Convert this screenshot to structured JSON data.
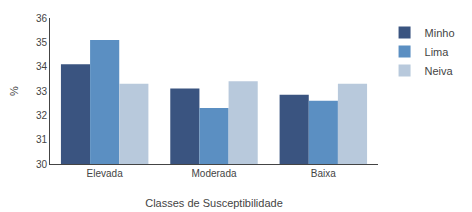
{
  "chart_data": {
    "type": "bar",
    "categories": [
      "Elevada",
      "Moderada",
      "Baixa"
    ],
    "series": [
      {
        "name": "Minho",
        "color": "#3a5480",
        "values": [
          34.1,
          33.1,
          32.85
        ]
      },
      {
        "name": "Lima",
        "color": "#5b8fc2",
        "values": [
          35.1,
          32.3,
          32.6
        ]
      },
      {
        "name": "Neiva",
        "color": "#b8c9dc",
        "values": [
          33.3,
          33.4,
          33.3
        ]
      }
    ],
    "xlabel": "Classes de Susceptibilidade",
    "ylabel": "%",
    "ylim": [
      30,
      36
    ],
    "yticks": [
      30,
      31,
      32,
      33,
      34,
      35,
      36
    ],
    "grid": false,
    "legend": "upper right"
  }
}
